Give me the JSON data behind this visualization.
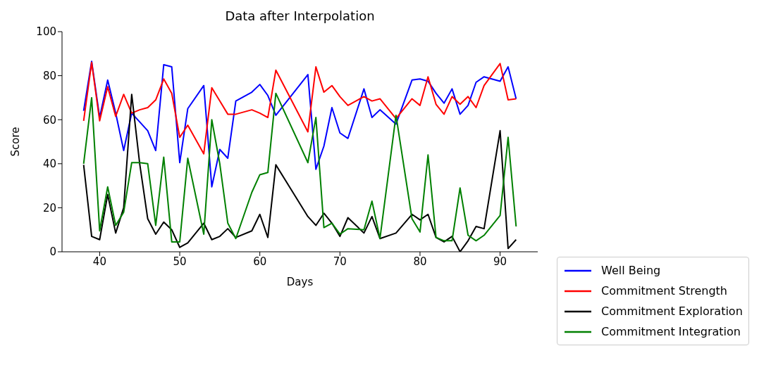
{
  "chart_data": {
    "type": "line",
    "title": "Data after Interpolation",
    "xlabel": "Days",
    "ylabel": "Score",
    "x": [
      38,
      39,
      40,
      41,
      42,
      43,
      44,
      45,
      46,
      47,
      48,
      49,
      50,
      51,
      53,
      54,
      55,
      56,
      57,
      59,
      60,
      61,
      62,
      66,
      67,
      68,
      69,
      70,
      71,
      73,
      74,
      75,
      77,
      79,
      80,
      81,
      82,
      83,
      84,
      85,
      86,
      87,
      88,
      90,
      91,
      92
    ],
    "series": [
      {
        "name": "Well Being",
        "color": "#0000ff",
        "values": [
          64,
          86.5,
          61,
          78,
          63,
          46,
          63,
          59,
          55,
          46,
          85,
          84,
          40.5,
          65,
          75.5,
          29.5,
          46.5,
          42.5,
          68.5,
          72.5,
          76,
          71,
          62,
          80.5,
          37.5,
          48,
          65.5,
          54,
          51.5,
          74,
          61,
          64.5,
          58,
          78,
          78.5,
          77.5,
          72,
          67.5,
          74,
          62.5,
          66.5,
          77,
          79.5,
          77.5,
          84,
          69.5
        ]
      },
      {
        "name": "Commitment Strength",
        "color": "#ff0000",
        "values": [
          59.5,
          86,
          59.5,
          75,
          61.5,
          71.5,
          63,
          64.5,
          65.5,
          69,
          78.5,
          72,
          52,
          57.5,
          44.5,
          74.5,
          68.5,
          62.5,
          62.5,
          64.5,
          63,
          61,
          82.5,
          54.5,
          84,
          72.5,
          75.5,
          70.5,
          66.5,
          70.5,
          68.5,
          69.5,
          60.5,
          69.5,
          66.5,
          79.5,
          67,
          62.5,
          70.5,
          67,
          70.5,
          65.5,
          75.5,
          85.5,
          69,
          69.5
        ]
      },
      {
        "name": "Commitment Exploration",
        "color": "#000000",
        "values": [
          39.5,
          7,
          5.5,
          26,
          8.5,
          20,
          71.5,
          40,
          15,
          8,
          13.5,
          10,
          2,
          4,
          13,
          5.5,
          7,
          10.5,
          6.5,
          9.5,
          17,
          6.5,
          39.5,
          16,
          12,
          17.5,
          13,
          7,
          15.5,
          8.5,
          16,
          6,
          8.5,
          17,
          14.5,
          17,
          6.5,
          4.5,
          7,
          0,
          5,
          11.5,
          10.5,
          55,
          1.5,
          5.5
        ]
      },
      {
        "name": "Commitment Integration",
        "color": "#008000",
        "values": [
          40,
          70,
          9.5,
          29.5,
          12,
          18,
          40.5,
          40.5,
          40,
          12,
          43,
          4.5,
          4.5,
          42.5,
          8,
          60,
          40,
          13,
          6,
          27,
          35,
          36,
          72,
          40.5,
          61,
          11,
          13,
          8,
          10.5,
          10,
          23,
          6,
          62,
          15,
          9,
          44,
          6.5,
          5,
          5,
          29,
          7.5,
          5,
          7.5,
          16.5,
          52,
          11.5
        ]
      }
    ],
    "xlim": [
      35.3,
      94.7
    ],
    "xticks": [
      40,
      50,
      60,
      70,
      80,
      90
    ],
    "ylim": [
      0,
      100
    ],
    "yticks": [
      0,
      20,
      40,
      60,
      80,
      100
    ],
    "grid": false,
    "legend": "bottom right",
    "marker": "none",
    "line_style": "solid"
  }
}
